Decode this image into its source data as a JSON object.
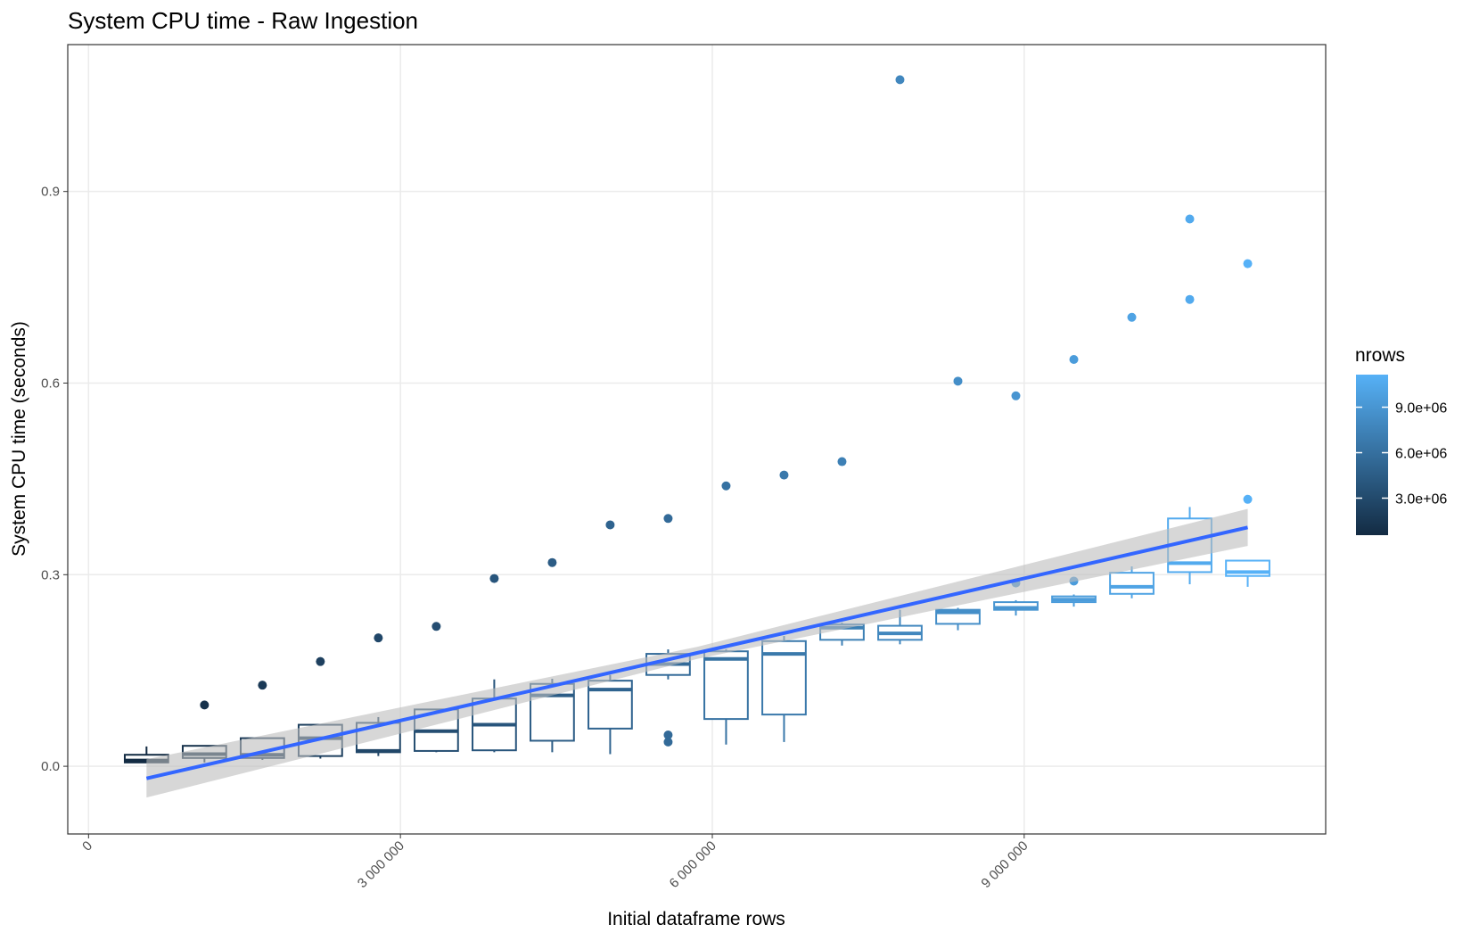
{
  "chart_data": {
    "type": "boxplot",
    "title": "System CPU time - Raw Ingestion",
    "x_label": "Initial dataframe rows",
    "y_label": "System CPU time (seconds)",
    "xlim": [
      -200000,
      11900000
    ],
    "ylim": [
      -0.106,
      1.13
    ],
    "xticks": [
      0,
      {
        "value": 3000000,
        "label": "3 000 000"
      },
      {
        "value": 6000000,
        "label": "6 000 000"
      },
      {
        "value": 9000000,
        "label": "9 000 000"
      }
    ],
    "yticks": [
      {
        "value": 0,
        "label": "0.0"
      },
      0.3,
      0.6,
      0.9
    ],
    "grid": true,
    "color_scale": {
      "title": "nrows",
      "low": "#132B43",
      "high": "#56B1F7",
      "limits": [
        557500,
        11150000
      ],
      "ticks": [
        {
          "value": 3000000,
          "label": "3.0e+06"
        },
        {
          "value": 6000000,
          "label": "6.0e+06"
        },
        {
          "value": 9000000,
          "label": "9.0e+06"
        }
      ]
    },
    "boxes": [
      {
        "x": 557500,
        "lower_whisker": 0.006,
        "q1": 0.006,
        "median": 0.009,
        "q3": 0.018,
        "upper_whisker": 0.031,
        "outliers": []
      },
      {
        "x": 1115000,
        "lower_whisker": 0.006,
        "q1": 0.013,
        "median": 0.019,
        "q3": 0.032,
        "upper_whisker": 0.032,
        "outliers": [
          0.096
        ]
      },
      {
        "x": 1672500,
        "lower_whisker": 0.01,
        "q1": 0.013,
        "median": 0.018,
        "q3": 0.044,
        "upper_whisker": 0.044,
        "outliers": [
          0.127
        ]
      },
      {
        "x": 2230000,
        "lower_whisker": 0.012,
        "q1": 0.016,
        "median": 0.044,
        "q3": 0.065,
        "upper_whisker": 0.065,
        "outliers": [
          0.164
        ]
      },
      {
        "x": 2787500,
        "lower_whisker": 0.016,
        "q1": 0.022,
        "median": 0.024,
        "q3": 0.068,
        "upper_whisker": 0.077,
        "outliers": [
          0.201
        ]
      },
      {
        "x": 3345000,
        "lower_whisker": 0.022,
        "q1": 0.024,
        "median": 0.055,
        "q3": 0.089,
        "upper_whisker": 0.089,
        "outliers": [
          0.219
        ]
      },
      {
        "x": 3902500,
        "lower_whisker": 0.022,
        "q1": 0.025,
        "median": 0.065,
        "q3": 0.106,
        "upper_whisker": 0.136,
        "outliers": [
          0.294
        ]
      },
      {
        "x": 4460000,
        "lower_whisker": 0.022,
        "q1": 0.04,
        "median": 0.111,
        "q3": 0.129,
        "upper_whisker": 0.137,
        "outliers": [
          0.319
        ]
      },
      {
        "x": 5017500,
        "lower_whisker": 0.019,
        "q1": 0.059,
        "median": 0.12,
        "q3": 0.134,
        "upper_whisker": 0.143,
        "outliers": [
          0.378
        ]
      },
      {
        "x": 5575000,
        "lower_whisker": 0.136,
        "q1": 0.143,
        "median": 0.16,
        "q3": 0.176,
        "upper_whisker": 0.183,
        "outliers": [
          0.388,
          0.049,
          0.038
        ]
      },
      {
        "x": 6132500,
        "lower_whisker": 0.034,
        "q1": 0.074,
        "median": 0.168,
        "q3": 0.18,
        "upper_whisker": 0.183,
        "outliers": [
          0.439
        ]
      },
      {
        "x": 6690000,
        "lower_whisker": 0.038,
        "q1": 0.081,
        "median": 0.176,
        "q3": 0.196,
        "upper_whisker": 0.204,
        "outliers": [
          0.456
        ]
      },
      {
        "x": 7247500,
        "lower_whisker": 0.189,
        "q1": 0.198,
        "median": 0.217,
        "q3": 0.222,
        "upper_whisker": 0.225,
        "outliers": [
          0.477
        ]
      },
      {
        "x": 7805000,
        "lower_whisker": 0.191,
        "q1": 0.198,
        "median": 0.208,
        "q3": 0.22,
        "upper_whisker": 0.245,
        "outliers": [
          1.075
        ]
      },
      {
        "x": 8362500,
        "lower_whisker": 0.213,
        "q1": 0.223,
        "median": 0.241,
        "q3": 0.245,
        "upper_whisker": 0.248,
        "outliers": [
          0.603
        ]
      },
      {
        "x": 8920000,
        "lower_whisker": 0.236,
        "q1": 0.245,
        "median": 0.248,
        "q3": 0.257,
        "upper_whisker": 0.26,
        "outliers": [
          0.58,
          0.287
        ]
      },
      {
        "x": 9477500,
        "lower_whisker": 0.25,
        "q1": 0.257,
        "median": 0.261,
        "q3": 0.266,
        "upper_whisker": 0.269,
        "outliers": [
          0.637,
          0.29
        ]
      },
      {
        "x": 10035000,
        "lower_whisker": 0.263,
        "q1": 0.27,
        "median": 0.281,
        "q3": 0.303,
        "upper_whisker": 0.313,
        "outliers": [
          0.703
        ]
      },
      {
        "x": 10592500,
        "lower_whisker": 0.285,
        "q1": 0.304,
        "median": 0.318,
        "q3": 0.388,
        "upper_whisker": 0.406,
        "outliers": [
          0.857,
          0.731
        ]
      },
      {
        "x": 11150000,
        "lower_whisker": 0.281,
        "q1": 0.298,
        "median": 0.304,
        "q3": 0.322,
        "upper_whisker": 0.322,
        "outliers": [
          0.787,
          0.418
        ]
      }
    ],
    "fit": {
      "color": "#3366FF",
      "band_color": "#bdbdbd",
      "x": [
        557500,
        5853750,
        11150000
      ],
      "y": [
        -0.019,
        0.1775,
        0.374
      ],
      "lower": [
        -0.049,
        0.168,
        0.345
      ],
      "upper": [
        0.011,
        0.187,
        0.403
      ]
    }
  }
}
